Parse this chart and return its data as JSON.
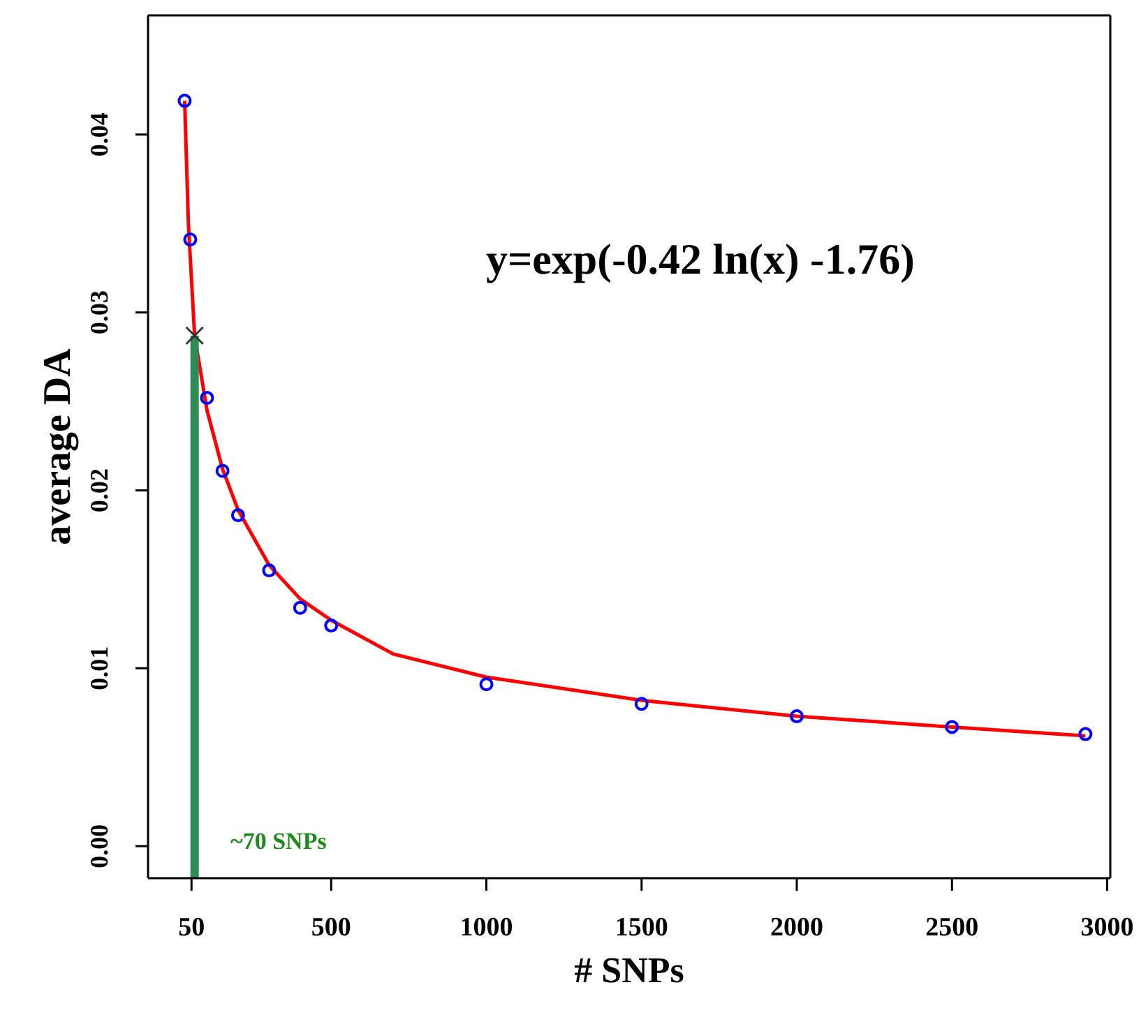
{
  "chart_data": {
    "type": "scatter",
    "xlabel": "# SNPs",
    "ylabel": "average DA",
    "xlim": [
      -90,
      3010
    ],
    "xticks": [
      50,
      500,
      1000,
      1500,
      2000,
      2500,
      3000
    ],
    "ylim": [
      -0.0018,
      0.0467
    ],
    "yticks": [
      {
        "value": 0,
        "label": "0.00"
      },
      0.01,
      0.02,
      0.03,
      0.04
    ],
    "grid": false,
    "series": [
      {
        "color": "#0000ff",
        "marker": "circle",
        "x": [
          28,
          46,
          100,
          150,
          200,
          300,
          400,
          500,
          1000,
          1500,
          2000,
          2500,
          2930
        ],
        "values": [
          0.0419,
          0.0341,
          0.0252,
          0.0211,
          0.0186,
          0.0155,
          0.0134,
          0.0124,
          0.0091,
          0.008,
          0.0073,
          0.0067,
          0.0063
        ]
      },
      {
        "type": "line",
        "color": "#ff0000",
        "marker": "none",
        "x": [
          28,
          40,
          60,
          100,
          150,
          200,
          300,
          400,
          500,
          700,
          1000,
          1500,
          2000,
          2500,
          2930
        ],
        "values": [
          0.0419,
          0.035,
          0.0287,
          0.0245,
          0.0212,
          0.0189,
          0.0158,
          0.0139,
          0.0127,
          0.0108,
          0.0095,
          0.0082,
          0.0073,
          0.0067,
          0.0062
        ]
      },
      {
        "type": "line",
        "color": "#2e8b57",
        "marker": "none",
        "x": [
          60,
          60
        ],
        "values": [
          -0.0018,
          0.0287
        ]
      },
      {
        "color": "#333333",
        "marker": "cross",
        "x": [
          60
        ],
        "values": [
          0.0287
        ]
      }
    ],
    "annotations": [
      "y=exp(-0.42 ln(x) -1.76)",
      "~70 SNPs"
    ]
  }
}
